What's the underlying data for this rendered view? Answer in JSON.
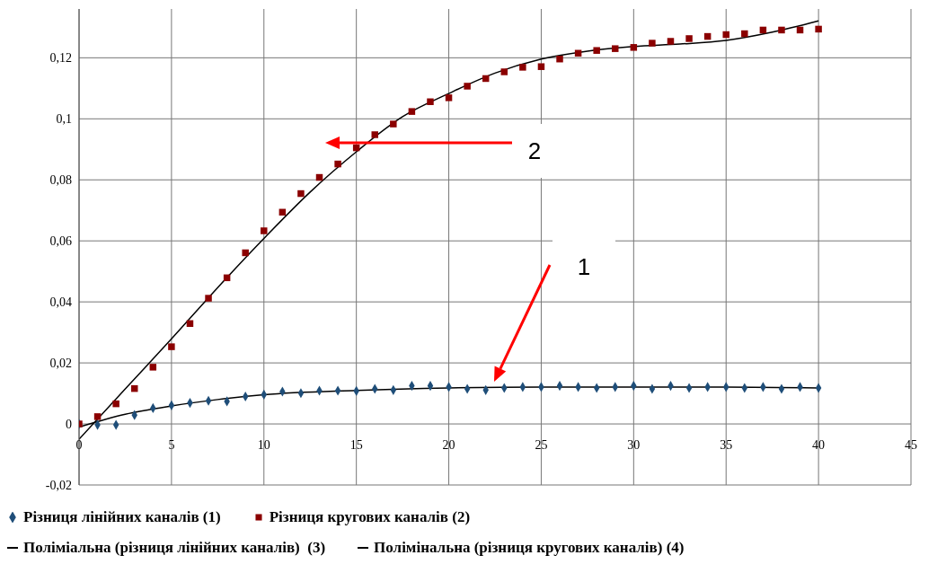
{
  "chart_data": {
    "type": "scatter",
    "xlim": [
      0,
      45
    ],
    "xticks": [
      0,
      5,
      10,
      15,
      20,
      25,
      30,
      35,
      40,
      45
    ],
    "ylim": [
      -0.02,
      0.136
    ],
    "yticks": [
      {
        "value": -0.02,
        "label": "-0,02"
      },
      {
        "value": 0,
        "label": "0"
      },
      {
        "value": 0.02,
        "label": "0,02"
      },
      {
        "value": 0.04,
        "label": "0,04"
      },
      {
        "value": 0.06,
        "label": "0,06"
      },
      {
        "value": 0.08,
        "label": "0,08"
      },
      {
        "value": 0.1,
        "label": "0,1"
      },
      {
        "value": 0.12,
        "label": "0,12"
      }
    ],
    "grid": true,
    "legend": "bottom",
    "series": [
      {
        "name": "Різниця лінійних каналів (1)",
        "marker": "diamond",
        "color": "#1f4e79",
        "x": [
          0,
          1,
          2,
          3,
          4,
          5,
          6,
          7,
          8,
          9,
          10,
          11,
          12,
          13,
          14,
          15,
          16,
          17,
          18,
          19,
          20,
          21,
          22,
          23,
          24,
          25,
          26,
          27,
          28,
          29,
          30,
          31,
          32,
          33,
          34,
          35,
          36,
          37,
          38,
          39,
          40
        ],
        "values": [
          0,
          -0.0003,
          -0.0003,
          0.0029,
          0.0052,
          0.0061,
          0.0069,
          0.0076,
          0.0074,
          0.009,
          0.0096,
          0.0106,
          0.0101,
          0.0109,
          0.0109,
          0.0108,
          0.0115,
          0.0111,
          0.0125,
          0.0125,
          0.0121,
          0.0115,
          0.0111,
          0.0118,
          0.0121,
          0.0121,
          0.0125,
          0.0121,
          0.0118,
          0.0121,
          0.0125,
          0.0115,
          0.0125,
          0.0118,
          0.0121,
          0.0121,
          0.0118,
          0.0121,
          0.0115,
          0.0121,
          0.0118
        ]
      },
      {
        "name": "Різниця кругових каналів (2)",
        "marker": "square",
        "color": "#8b0000",
        "x": [
          0,
          1,
          2,
          3,
          4,
          5,
          6,
          7,
          8,
          9,
          10,
          11,
          12,
          13,
          14,
          15,
          16,
          17,
          18,
          19,
          20,
          21,
          22,
          23,
          24,
          25,
          26,
          27,
          28,
          29,
          30,
          31,
          32,
          33,
          34,
          35,
          36,
          37,
          38,
          39,
          40
        ],
        "values": [
          0,
          0.0024,
          0.0066,
          0.0116,
          0.0186,
          0.0253,
          0.0329,
          0.0412,
          0.0479,
          0.0561,
          0.0633,
          0.0694,
          0.0755,
          0.0808,
          0.0852,
          0.0905,
          0.0948,
          0.0983,
          0.1024,
          0.1056,
          0.1069,
          0.1107,
          0.1132,
          0.1154,
          0.1169,
          0.1171,
          0.1196,
          0.1215,
          0.1224,
          0.123,
          0.1234,
          0.1248,
          0.1254,
          0.1263,
          0.127,
          0.1276,
          0.1279,
          0.1291,
          0.1291,
          0.1291,
          0.1294
        ]
      },
      {
        "name": "Поліміальна (різниця лінійних каналів)  (3)",
        "type": "line",
        "marker": "none",
        "color": "#000000",
        "x": [
          0,
          2.5,
          5,
          7.5,
          10,
          15,
          20,
          25,
          30,
          35,
          40
        ],
        "values": [
          -0.001,
          0.0032,
          0.0059,
          0.008,
          0.0096,
          0.011,
          0.0118,
          0.0121,
          0.0121,
          0.0121,
          0.0118
        ]
      },
      {
        "name": "Полімінальна (різниця кругових каналів) (4)",
        "type": "line",
        "marker": "none",
        "color": "#000000",
        "x": [
          0,
          2.5,
          5,
          7.5,
          10,
          12.5,
          15,
          17.5,
          20,
          22.5,
          25,
          27.5,
          30,
          32.5,
          35,
          37.5,
          40
        ],
        "values": [
          -0.005,
          0.0115,
          0.0279,
          0.0447,
          0.0608,
          0.076,
          0.0892,
          0.1007,
          0.1083,
          0.115,
          0.1196,
          0.1222,
          0.1237,
          0.1245,
          0.1257,
          0.1284,
          0.1321
        ]
      }
    ],
    "annotations": [
      "2",
      "1"
    ]
  }
}
